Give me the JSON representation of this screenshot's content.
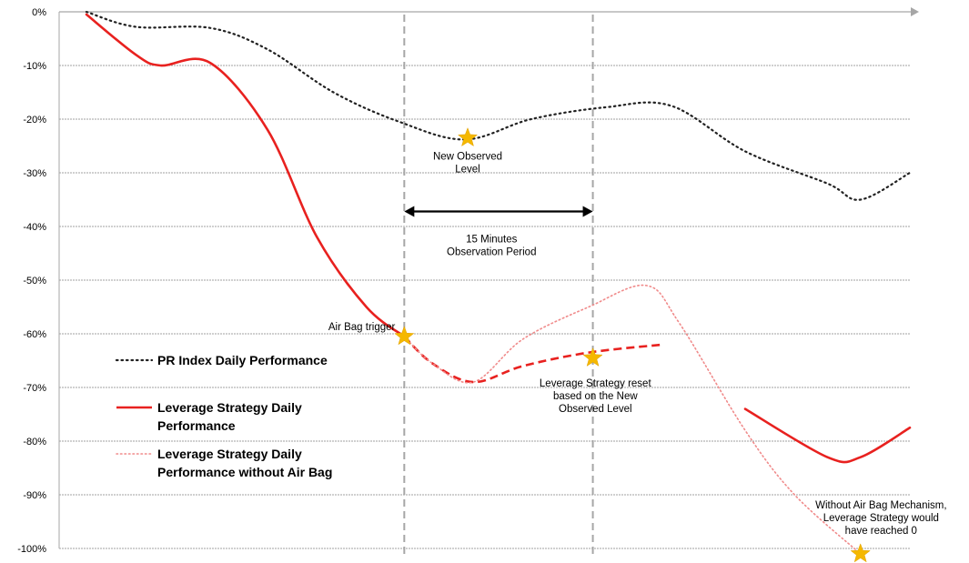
{
  "chart_data": {
    "type": "line",
    "title": "",
    "xlabel": "",
    "ylabel": "",
    "ylim": [
      -100,
      0
    ],
    "y_ticks": [
      {
        "value": 0,
        "label": "0%"
      },
      {
        "value": -10,
        "label": "-10%"
      },
      {
        "value": -20,
        "label": "-20%"
      },
      {
        "value": -30,
        "label": "-30%"
      },
      {
        "value": -40,
        "label": "-40%"
      },
      {
        "value": -50,
        "label": "-50%"
      },
      {
        "value": -60,
        "label": "-60%"
      },
      {
        "value": -70,
        "label": "-70%"
      },
      {
        "value": -80,
        "label": "-80%"
      },
      {
        "value": -90,
        "label": "-90%"
      },
      {
        "value": -100,
        "label": "-100%"
      }
    ],
    "grid": true,
    "legend_position": "left-middle",
    "xlim": [
      0,
      100
    ],
    "series": [
      {
        "name": "PR Index Daily Performance",
        "color": "#222222",
        "style": "dotted",
        "points": [
          [
            0,
            0
          ],
          [
            6,
            -2.8
          ],
          [
            15,
            -3
          ],
          [
            22,
            -7
          ],
          [
            30,
            -15
          ],
          [
            38,
            -20.5
          ],
          [
            46,
            -23.8
          ],
          [
            54,
            -20
          ],
          [
            63,
            -17.8
          ],
          [
            71,
            -17.5
          ],
          [
            80,
            -26
          ],
          [
            90,
            -32
          ],
          [
            94,
            -35
          ],
          [
            100,
            -30
          ]
        ]
      },
      {
        "name": "Leverage Strategy Daily Performance",
        "color": "#e8211f",
        "style": "solid-then-dashed",
        "dashed_from_x": 38.6,
        "dashed_to_x": 73,
        "points": [
          [
            0,
            -0.5
          ],
          [
            6,
            -8
          ],
          [
            9,
            -10
          ],
          [
            15,
            -9.5
          ],
          [
            22,
            -22
          ],
          [
            28,
            -42
          ],
          [
            34,
            -55
          ],
          [
            38.6,
            -60.5
          ],
          [
            42,
            -65.5
          ],
          [
            47,
            -69
          ],
          [
            53,
            -66
          ],
          [
            61,
            -63.5
          ],
          [
            70,
            -62
          ],
          [
            80,
            -74
          ],
          [
            90,
            -83
          ],
          [
            94,
            -83
          ],
          [
            100,
            -77.5
          ]
        ]
      },
      {
        "name": "Leverage Strategy Daily Performance without Air Bag",
        "color": "#f08a8a",
        "style": "dotted",
        "points": [
          [
            38.6,
            -60.5
          ],
          [
            42,
            -65.5
          ],
          [
            47,
            -69
          ],
          [
            53,
            -61
          ],
          [
            61,
            -55
          ],
          [
            68,
            -51
          ],
          [
            72,
            -58
          ],
          [
            80,
            -78
          ],
          [
            86,
            -90
          ],
          [
            94,
            -101
          ]
        ]
      }
    ],
    "vertical_lines": [
      {
        "x": 38.6,
        "style": "dashed",
        "color": "#a6a6a6"
      },
      {
        "x": 61.5,
        "style": "dashed",
        "color": "#a6a6a6"
      }
    ],
    "markers": [
      {
        "x": 46.3,
        "y": -23.5,
        "symbol": "star",
        "color": "#f5b800"
      },
      {
        "x": 38.6,
        "y": -60.5,
        "symbol": "star",
        "color": "#f5b800"
      },
      {
        "x": 61.5,
        "y": -64.5,
        "symbol": "star",
        "color": "#f5b800"
      },
      {
        "x": 94,
        "y": -101,
        "symbol": "star",
        "color": "#f5b800"
      }
    ],
    "arrow": {
      "x1": 38.6,
      "x2": 61.5,
      "y": -37.2
    },
    "annotations": [
      {
        "lines": [
          "New Observed",
          "Level"
        ],
        "x": 46.3,
        "y": -27.5,
        "anchor": "middle"
      },
      {
        "lines": [
          "15 Minutes",
          "Observation Period"
        ],
        "x": 49.2,
        "y": -43,
        "anchor": "middle"
      },
      {
        "lines": [
          "Air Bag trigger"
        ],
        "x": 37.5,
        "y": -59.3,
        "anchor": "end"
      },
      {
        "lines": [
          "Leverage Strategy reset",
          "based on the New",
          "Observed Level"
        ],
        "x": 61.8,
        "y": -69.8,
        "anchor": "middle"
      },
      {
        "lines": [
          "Without Air Bag Mechanism,",
          "Leverage Strategy would",
          "have reached 0"
        ],
        "x": 96.5,
        "y": -92.5,
        "anchor": "middle"
      }
    ],
    "legend": [
      {
        "label_lines": [
          "PR Index Daily Performance"
        ],
        "color": "#222222",
        "style": "dotted"
      },
      {
        "label_lines": [
          "Leverage Strategy Daily",
          "Performance"
        ],
        "color": "#e8211f",
        "style": "solid"
      },
      {
        "label_lines": [
          "Leverage Strategy Daily",
          "Performance without Air Bag"
        ],
        "color": "#f08a8a",
        "style": "dotted"
      }
    ]
  }
}
